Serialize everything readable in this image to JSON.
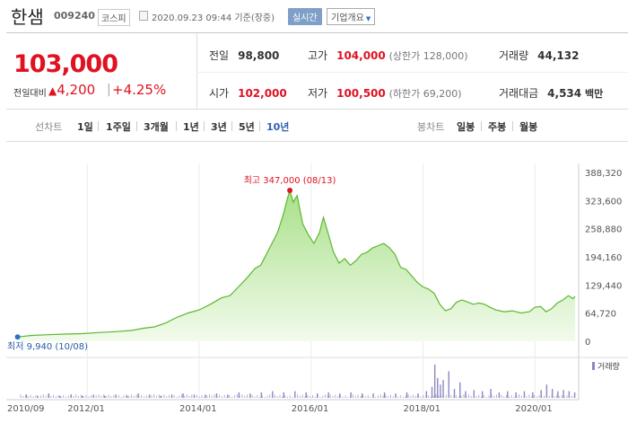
{
  "header": {
    "name": "한샘",
    "code": "009240",
    "market": "코스피",
    "timestamp": "2020.09.23 09:44 기준(장중)",
    "realtime_label": "실시간",
    "company_label": "기업개요"
  },
  "price": {
    "current": "103,000",
    "change_label": "전일대비",
    "change_arrow": "▲",
    "change_value": "4,200",
    "change_rate": "+4.25%"
  },
  "stats": {
    "prev_label": "전일",
    "prev_value": "98,800",
    "high_label": "고가",
    "high_value": "104,000",
    "upper_limit": "(상한가 128,000)",
    "volume_label": "거래량",
    "volume_value": "44,132",
    "open_label": "시가",
    "open_value": "102,000",
    "low_label": "저가",
    "low_value": "100,500",
    "lower_limit": "(하한가 69,200)",
    "amount_label": "거래대금",
    "amount_value": "4,534",
    "amount_unit": "백만"
  },
  "tabs": {
    "line_label": "선차트",
    "periods": [
      "1일",
      "1주일",
      "3개월",
      "1년",
      "3년",
      "5년",
      "10년"
    ],
    "active_period": "10년",
    "candle_label": "봉차트",
    "candles": [
      "일봉",
      "주봉",
      "월봉"
    ]
  },
  "chart_data": {
    "type": "area",
    "title": "",
    "xlabel": "",
    "ylabel": "",
    "x_ticks": [
      "2010/09",
      "2012/01",
      "2014/01",
      "2016/01",
      "2018/01",
      "2020/01"
    ],
    "y_ticks": [
      "388,320",
      "323,600",
      "258,880",
      "194,160",
      "129,440",
      "64,720",
      "0"
    ],
    "ylim": [
      0,
      388320
    ],
    "xlim": [
      2010.6,
      2020.75
    ],
    "max_annotation": "최고 347,000 (08/13)",
    "min_annotation": "최저 9,940 (10/08)",
    "max_point": {
      "x": 2015.62,
      "y": 347000
    },
    "min_point": {
      "x": 2010.77,
      "y": 9940
    },
    "volume_legend": "거래량",
    "colors": {
      "line": "#5cb82e",
      "fill_top": "#a9e08a",
      "fill_bottom": "#f2fbec",
      "volume": "#8c87c2",
      "highlight": "#e01222"
    },
    "series": [
      {
        "values": [
          [
            2010.77,
            9940
          ],
          [
            2011.0,
            13500
          ],
          [
            2011.3,
            15000
          ],
          [
            2011.6,
            16500
          ],
          [
            2011.9,
            17500
          ],
          [
            2012.2,
            20000
          ],
          [
            2012.5,
            22000
          ],
          [
            2012.8,
            25000
          ],
          [
            2013.0,
            30000
          ],
          [
            2013.2,
            33000
          ],
          [
            2013.4,
            42000
          ],
          [
            2013.6,
            55000
          ],
          [
            2013.8,
            65000
          ],
          [
            2014.0,
            72000
          ],
          [
            2014.2,
            85000
          ],
          [
            2014.4,
            100000
          ],
          [
            2014.55,
            105000
          ],
          [
            2014.7,
            125000
          ],
          [
            2014.85,
            145000
          ],
          [
            2015.0,
            168000
          ],
          [
            2015.1,
            175000
          ],
          [
            2015.2,
            200000
          ],
          [
            2015.3,
            225000
          ],
          [
            2015.4,
            250000
          ],
          [
            2015.5,
            290000
          ],
          [
            2015.58,
            330000
          ],
          [
            2015.62,
            347000
          ],
          [
            2015.68,
            320000
          ],
          [
            2015.75,
            335000
          ],
          [
            2015.85,
            270000
          ],
          [
            2015.95,
            245000
          ],
          [
            2016.05,
            225000
          ],
          [
            2016.15,
            250000
          ],
          [
            2016.22,
            285000
          ],
          [
            2016.3,
            250000
          ],
          [
            2016.4,
            205000
          ],
          [
            2016.5,
            180000
          ],
          [
            2016.6,
            190000
          ],
          [
            2016.7,
            175000
          ],
          [
            2016.8,
            185000
          ],
          [
            2016.9,
            200000
          ],
          [
            2017.0,
            205000
          ],
          [
            2017.1,
            215000
          ],
          [
            2017.2,
            220000
          ],
          [
            2017.3,
            225000
          ],
          [
            2017.4,
            215000
          ],
          [
            2017.5,
            200000
          ],
          [
            2017.6,
            170000
          ],
          [
            2017.7,
            165000
          ],
          [
            2017.8,
            150000
          ],
          [
            2017.9,
            135000
          ],
          [
            2018.0,
            125000
          ],
          [
            2018.1,
            120000
          ],
          [
            2018.2,
            110000
          ],
          [
            2018.3,
            85000
          ],
          [
            2018.4,
            70000
          ],
          [
            2018.5,
            75000
          ],
          [
            2018.6,
            90000
          ],
          [
            2018.7,
            95000
          ],
          [
            2018.8,
            90000
          ],
          [
            2018.9,
            85000
          ],
          [
            2019.0,
            88000
          ],
          [
            2019.1,
            85000
          ],
          [
            2019.2,
            78000
          ],
          [
            2019.3,
            72000
          ],
          [
            2019.45,
            68000
          ],
          [
            2019.6,
            70000
          ],
          [
            2019.75,
            65000
          ],
          [
            2019.9,
            68000
          ],
          [
            2020.0,
            78000
          ],
          [
            2020.1,
            80000
          ],
          [
            2020.2,
            68000
          ],
          [
            2020.3,
            75000
          ],
          [
            2020.4,
            88000
          ],
          [
            2020.5,
            95000
          ],
          [
            2020.6,
            105000
          ],
          [
            2020.68,
            98000
          ],
          [
            2020.72,
            103000
          ]
        ]
      }
    ],
    "volume": [
      [
        2010.9,
        3
      ],
      [
        2011.1,
        2
      ],
      [
        2011.3,
        4
      ],
      [
        2011.5,
        2
      ],
      [
        2011.7,
        3
      ],
      [
        2011.9,
        2
      ],
      [
        2012.1,
        3
      ],
      [
        2012.3,
        2
      ],
      [
        2012.5,
        3
      ],
      [
        2012.7,
        2
      ],
      [
        2012.9,
        4
      ],
      [
        2013.1,
        3
      ],
      [
        2013.3,
        2
      ],
      [
        2013.5,
        3
      ],
      [
        2013.7,
        4
      ],
      [
        2013.9,
        3
      ],
      [
        2014.1,
        3
      ],
      [
        2014.3,
        4
      ],
      [
        2014.5,
        3
      ],
      [
        2014.7,
        5
      ],
      [
        2014.9,
        4
      ],
      [
        2015.1,
        5
      ],
      [
        2015.3,
        6
      ],
      [
        2015.5,
        5
      ],
      [
        2015.7,
        6
      ],
      [
        2015.9,
        5
      ],
      [
        2016.1,
        4
      ],
      [
        2016.3,
        5
      ],
      [
        2016.5,
        4
      ],
      [
        2016.7,
        5
      ],
      [
        2016.9,
        4
      ],
      [
        2017.1,
        4
      ],
      [
        2017.3,
        5
      ],
      [
        2017.5,
        4
      ],
      [
        2017.7,
        5
      ],
      [
        2017.9,
        4
      ],
      [
        2018.05,
        6
      ],
      [
        2018.15,
        10
      ],
      [
        2018.2,
        30
      ],
      [
        2018.25,
        18
      ],
      [
        2018.3,
        12
      ],
      [
        2018.35,
        16
      ],
      [
        2018.45,
        24
      ],
      [
        2018.55,
        8
      ],
      [
        2018.65,
        14
      ],
      [
        2018.75,
        6
      ],
      [
        2018.9,
        7
      ],
      [
        2019.05,
        6
      ],
      [
        2019.2,
        8
      ],
      [
        2019.35,
        5
      ],
      [
        2019.5,
        6
      ],
      [
        2019.65,
        5
      ],
      [
        2019.8,
        6
      ],
      [
        2019.95,
        5
      ],
      [
        2020.1,
        7
      ],
      [
        2020.2,
        12
      ],
      [
        2020.3,
        8
      ],
      [
        2020.4,
        6
      ],
      [
        2020.5,
        7
      ],
      [
        2020.6,
        6
      ],
      [
        2020.7,
        5
      ]
    ]
  }
}
